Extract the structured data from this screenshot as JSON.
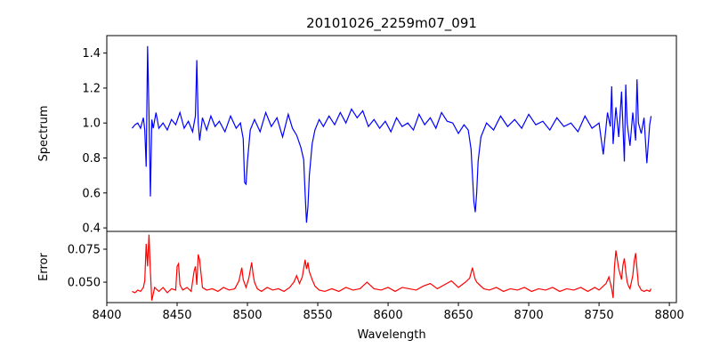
{
  "chart_data": [
    {
      "type": "line",
      "title": "20101026_2259m07_091",
      "xlabel": "",
      "ylabel": "Spectrum",
      "xlim": [
        8400,
        8805
      ],
      "ylim": [
        0.38,
        1.5
      ],
      "yticks": [
        0.4,
        0.6,
        0.8,
        1.0,
        1.2,
        1.4
      ],
      "ytick_labels": [
        "0.4",
        "0.6",
        "0.8",
        "1.0",
        "1.2",
        "1.4"
      ],
      "grid": false,
      "series": [
        {
          "color": "#0000ff",
          "x": [
            8418,
            8420,
            8422,
            8424,
            8426,
            8427,
            8428,
            8429,
            8430,
            8431,
            8432,
            8433,
            8435,
            8437,
            8440,
            8443,
            8446,
            8449,
            8452,
            8455,
            8458,
            8461,
            8463,
            8464,
            8465,
            8466,
            8468,
            8471,
            8474,
            8477,
            8480,
            8484,
            8488,
            8492,
            8495,
            8497,
            8498,
            8499,
            8500,
            8502,
            8505,
            8509,
            8513,
            8517,
            8521,
            8525,
            8529,
            8532,
            8535,
            8538,
            8540,
            8541,
            8542,
            8543,
            8544,
            8546,
            8548,
            8551,
            8554,
            8558,
            8562,
            8566,
            8570,
            8574,
            8578,
            8582,
            8586,
            8590,
            8594,
            8598,
            8602,
            8606,
            8610,
            8614,
            8618,
            8622,
            8626,
            8630,
            8634,
            8638,
            8642,
            8646,
            8650,
            8654,
            8657,
            8659,
            8660,
            8661,
            8662,
            8663,
            8664,
            8666,
            8670,
            8675,
            8680,
            8685,
            8690,
            8695,
            8700,
            8705,
            8710,
            8715,
            8720,
            8725,
            8730,
            8735,
            8740,
            8745,
            8750,
            8753,
            8756,
            8758,
            8759,
            8760,
            8762,
            8764,
            8766,
            8768,
            8769,
            8770,
            8772,
            8774,
            8776,
            8777,
            8778,
            8780,
            8782,
            8784,
            8786,
            8787
          ],
          "y": [
            0.97,
            0.99,
            1.0,
            0.97,
            1.03,
            0.96,
            0.75,
            1.44,
            1.05,
            0.58,
            1.02,
            0.97,
            1.06,
            0.97,
            1.0,
            0.96,
            1.02,
            0.99,
            1.06,
            0.97,
            1.01,
            0.95,
            1.04,
            1.36,
            1.0,
            0.9,
            1.03,
            0.96,
            1.04,
            0.98,
            1.01,
            0.95,
            1.04,
            0.97,
            1.0,
            0.91,
            0.66,
            0.65,
            0.78,
            0.96,
            1.02,
            0.95,
            1.06,
            0.98,
            1.03,
            0.92,
            1.05,
            0.97,
            0.93,
            0.86,
            0.79,
            0.6,
            0.43,
            0.52,
            0.7,
            0.88,
            0.96,
            1.02,
            0.98,
            1.04,
            0.99,
            1.06,
            1.0,
            1.08,
            1.03,
            1.07,
            0.98,
            1.02,
            0.97,
            1.01,
            0.95,
            1.03,
            0.98,
            1.0,
            0.96,
            1.05,
            0.99,
            1.03,
            0.97,
            1.06,
            1.01,
            1.0,
            0.94,
            0.99,
            0.96,
            0.85,
            0.7,
            0.55,
            0.49,
            0.6,
            0.78,
            0.92,
            1.0,
            0.96,
            1.04,
            0.98,
            1.02,
            0.97,
            1.05,
            0.99,
            1.01,
            0.96,
            1.03,
            0.98,
            1.0,
            0.95,
            1.04,
            0.97,
            1.0,
            0.82,
            1.06,
            0.98,
            1.21,
            0.88,
            1.09,
            0.92,
            1.18,
            0.78,
            1.22,
            1.0,
            0.87,
            1.06,
            0.9,
            1.25,
            1.0,
            0.94,
            1.03,
            0.77,
            0.99,
            1.04
          ]
        }
      ]
    },
    {
      "type": "line",
      "title": "",
      "xlabel": "Wavelength",
      "ylabel": "Error",
      "xlim": [
        8400,
        8805
      ],
      "ylim": [
        0.0345,
        0.0885
      ],
      "xticks": [
        8400,
        8450,
        8500,
        8550,
        8600,
        8650,
        8700,
        8750,
        8800
      ],
      "xtick_labels": [
        "8400",
        "8450",
        "8500",
        "8550",
        "8600",
        "8650",
        "8700",
        "8750",
        "8800"
      ],
      "yticks": [
        0.05,
        0.075
      ],
      "ytick_labels": [
        "0.050",
        "0.075"
      ],
      "grid": false,
      "series": [
        {
          "color": "#ff0000",
          "x": [
            8418,
            8420,
            8422,
            8424,
            8426,
            8427,
            8428,
            8429,
            8430,
            8431,
            8432,
            8434,
            8437,
            8440,
            8443,
            8446,
            8449,
            8450,
            8451,
            8452,
            8454,
            8457,
            8460,
            8462,
            8463,
            8464,
            8465,
            8466,
            8468,
            8471,
            8475,
            8479,
            8483,
            8487,
            8491,
            8494,
            8496,
            8497,
            8499,
            8501,
            8503,
            8504,
            8505,
            8507,
            8510,
            8514,
            8518,
            8522,
            8526,
            8530,
            8533,
            8535,
            8537,
            8539,
            8541,
            8542,
            8543,
            8544,
            8546,
            8548,
            8551,
            8555,
            8560,
            8565,
            8570,
            8575,
            8580,
            8585,
            8590,
            8595,
            8600,
            8605,
            8610,
            8615,
            8620,
            8625,
            8630,
            8635,
            8640,
            8645,
            8650,
            8655,
            8658,
            8660,
            8661,
            8662,
            8663,
            8665,
            8668,
            8672,
            8677,
            8682,
            8687,
            8692,
            8697,
            8702,
            8707,
            8712,
            8717,
            8722,
            8727,
            8732,
            8737,
            8742,
            8747,
            8750,
            8753,
            8755,
            8757,
            8759,
            8760,
            8761,
            8762,
            8764,
            8766,
            8767,
            8768,
            8769,
            8770,
            8771,
            8772,
            8774,
            8775,
            8776,
            8777,
            8778,
            8779,
            8780,
            8782,
            8784,
            8786,
            8787
          ],
          "y": [
            0.043,
            0.042,
            0.044,
            0.043,
            0.046,
            0.051,
            0.079,
            0.062,
            0.086,
            0.058,
            0.036,
            0.046,
            0.043,
            0.046,
            0.042,
            0.045,
            0.044,
            0.062,
            0.064,
            0.048,
            0.044,
            0.046,
            0.043,
            0.058,
            0.062,
            0.048,
            0.071,
            0.067,
            0.046,
            0.044,
            0.045,
            0.043,
            0.046,
            0.044,
            0.045,
            0.051,
            0.061,
            0.052,
            0.046,
            0.053,
            0.065,
            0.056,
            0.05,
            0.045,
            0.043,
            0.046,
            0.044,
            0.045,
            0.043,
            0.046,
            0.05,
            0.055,
            0.049,
            0.054,
            0.067,
            0.06,
            0.065,
            0.058,
            0.052,
            0.047,
            0.044,
            0.043,
            0.045,
            0.043,
            0.046,
            0.044,
            0.045,
            0.05,
            0.045,
            0.044,
            0.046,
            0.043,
            0.046,
            0.045,
            0.044,
            0.047,
            0.049,
            0.045,
            0.048,
            0.051,
            0.046,
            0.05,
            0.053,
            0.061,
            0.056,
            0.052,
            0.05,
            0.048,
            0.045,
            0.044,
            0.046,
            0.043,
            0.045,
            0.044,
            0.046,
            0.043,
            0.045,
            0.044,
            0.046,
            0.043,
            0.045,
            0.044,
            0.046,
            0.043,
            0.046,
            0.044,
            0.047,
            0.049,
            0.054,
            0.045,
            0.038,
            0.062,
            0.074,
            0.06,
            0.052,
            0.063,
            0.068,
            0.058,
            0.05,
            0.047,
            0.045,
            0.055,
            0.066,
            0.072,
            0.06,
            0.048,
            0.046,
            0.044,
            0.043,
            0.044,
            0.043,
            0.045
          ]
        }
      ]
    }
  ]
}
